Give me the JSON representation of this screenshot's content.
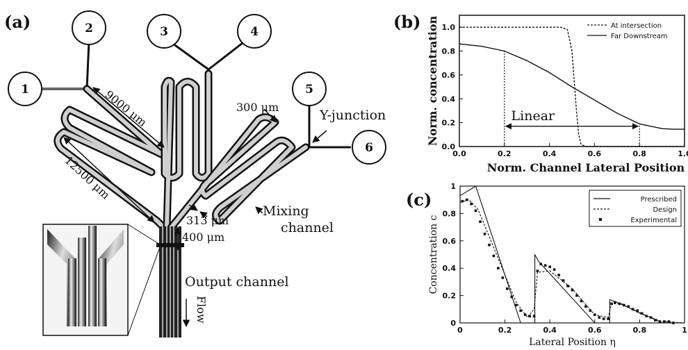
{
  "panel_a": {
    "label": "(a)",
    "inlets": [
      "1",
      "2",
      "3",
      "4",
      "5",
      "6"
    ],
    "annotations": {
      "len_9000": "9000 μm",
      "len_12500": "12500 μm",
      "len_300": "300 μm",
      "len_313": "313 μm",
      "len_400": "400 μm",
      "y_junction": "Y-junction",
      "mixing_line1": "Mixing",
      "mixing_line2": "channel",
      "output": "Output channel",
      "flow": "Flow"
    }
  },
  "chart_data": [
    {
      "panel": "(b)",
      "type": "line",
      "xlabel": "Norm. Channel Lateral Position",
      "ylabel": "Norm. concentration",
      "xlim": [
        0,
        1.0
      ],
      "ylim": [
        0,
        1.1
      ],
      "xticks": [
        "0.0",
        "0.2",
        "0.4",
        "0.6",
        "0.8",
        "1.0"
      ],
      "yticks": [
        "0.0",
        "0.2",
        "0.4",
        "0.6",
        "0.8",
        "1.0"
      ],
      "legend_position": "top-right",
      "annotation": "Linear",
      "series": [
        {
          "name": "At intersection",
          "style": "dashed",
          "x": [
            0,
            0.45,
            0.48,
            0.5,
            0.51,
            0.52,
            0.53,
            0.54,
            0.56,
            0.6,
            1.0
          ],
          "y": [
            1.0,
            1.0,
            0.98,
            0.8,
            0.55,
            0.3,
            0.1,
            0.02,
            0.0,
            0.0,
            0.0
          ]
        },
        {
          "name": "Far Downstream",
          "style": "solid",
          "x": [
            0,
            0.1,
            0.2,
            0.3,
            0.4,
            0.5,
            0.6,
            0.7,
            0.8,
            0.9,
            0.95,
            1.0
          ],
          "y": [
            0.86,
            0.84,
            0.8,
            0.72,
            0.62,
            0.5,
            0.39,
            0.28,
            0.19,
            0.15,
            0.145,
            0.145
          ]
        }
      ]
    },
    {
      "panel": "(c)",
      "type": "line",
      "xlabel": "Lateral Position η",
      "ylabel": "Concentration c",
      "xlim": [
        0,
        1
      ],
      "ylim": [
        0,
        1
      ],
      "xticks": [
        "0",
        "0.2",
        "0.4",
        "0.6",
        "0.8",
        "1"
      ],
      "yticks": [
        "0",
        "0.2",
        "0.4",
        "0.6",
        "0.8",
        "1"
      ],
      "legend_position": "top-right",
      "series": [
        {
          "name": "Prescribed",
          "style": "solid",
          "x": [
            0.0,
            0.07,
            0.27,
            0.333,
            0.333,
            0.35,
            0.6,
            0.667,
            0.667,
            0.7,
            0.9,
            1.0
          ],
          "y": [
            0.93,
            1.0,
            0.0,
            0.0,
            0.5,
            0.45,
            0.0,
            0.0,
            0.17,
            0.15,
            0.0,
            0.0
          ]
        },
        {
          "name": "Design",
          "style": "dashed",
          "x": [
            0.0,
            0.04,
            0.08,
            0.15,
            0.25,
            0.3,
            0.33,
            0.345,
            0.4,
            0.5,
            0.6,
            0.66,
            0.675,
            0.72,
            0.8,
            0.9,
            1.0
          ],
          "y": [
            0.88,
            0.9,
            0.83,
            0.55,
            0.15,
            0.04,
            0.1,
            0.37,
            0.38,
            0.25,
            0.06,
            0.04,
            0.14,
            0.14,
            0.07,
            0.01,
            0.0
          ],
          "points": null
        },
        {
          "name": "Experimental",
          "style": "points",
          "x": [
            0.01,
            0.03,
            0.05,
            0.07,
            0.09,
            0.11,
            0.13,
            0.15,
            0.17,
            0.19,
            0.21,
            0.23,
            0.25,
            0.27,
            0.29,
            0.31,
            0.33,
            0.345,
            0.36,
            0.38,
            0.4,
            0.42,
            0.44,
            0.46,
            0.48,
            0.5,
            0.52,
            0.54,
            0.56,
            0.58,
            0.6,
            0.62,
            0.64,
            0.66,
            0.675,
            0.69,
            0.71,
            0.73,
            0.75,
            0.77,
            0.79,
            0.81,
            0.83,
            0.85,
            0.87,
            0.89,
            0.91,
            0.93,
            0.95
          ],
          "y": [
            0.89,
            0.9,
            0.87,
            0.82,
            0.74,
            0.65,
            0.57,
            0.49,
            0.4,
            0.33,
            0.25,
            0.19,
            0.13,
            0.09,
            0.06,
            0.05,
            0.05,
            0.38,
            0.43,
            0.42,
            0.41,
            0.39,
            0.35,
            0.31,
            0.27,
            0.24,
            0.2,
            0.16,
            0.12,
            0.09,
            0.06,
            0.04,
            0.03,
            0.03,
            0.14,
            0.15,
            0.14,
            0.13,
            0.12,
            0.1,
            0.09,
            0.07,
            0.05,
            0.04,
            0.02,
            0.01,
            0.01,
            0.01,
            0.0
          ]
        }
      ]
    }
  ]
}
